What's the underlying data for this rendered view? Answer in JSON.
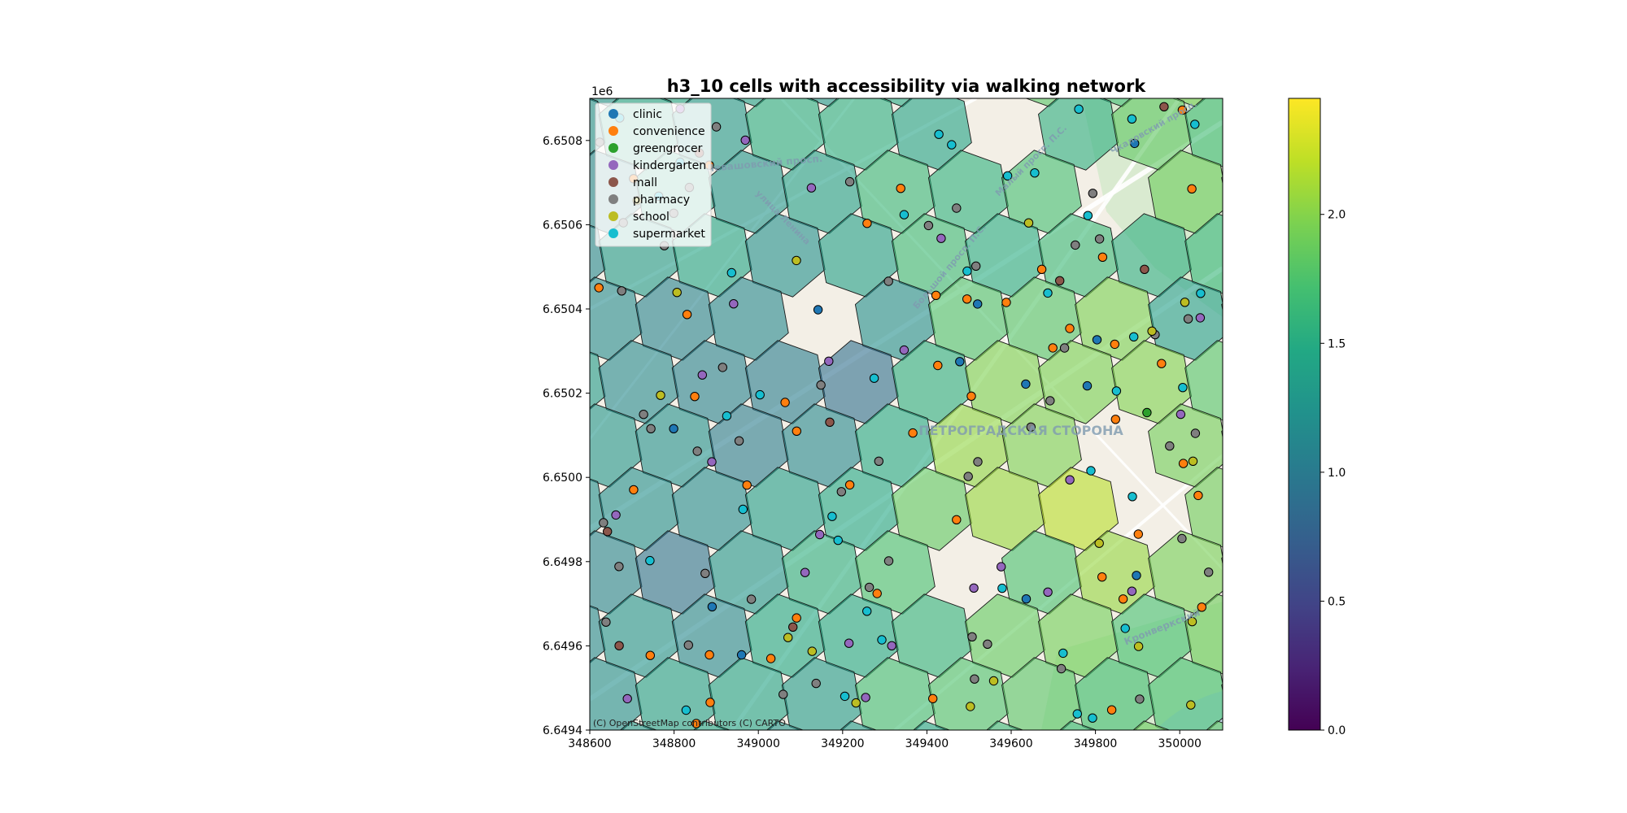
{
  "title": "h3_10 cells with accessibility via walking network",
  "axes": {
    "x_ticks": [
      "348600",
      "348800",
      "349000",
      "349200",
      "349400",
      "349600",
      "349800",
      "350000"
    ],
    "y_ticks": [
      "6.6494",
      "6.6496",
      "6.6498",
      "6.6500",
      "6.6502",
      "6.6504",
      "6.6506",
      "6.6508"
    ],
    "y_offset": "1e6"
  },
  "colorbar": {
    "ticks": [
      "0.0",
      "0.5",
      "1.0",
      "1.5",
      "2.0"
    ],
    "min": 0.0,
    "max": 2.45,
    "colormap": "viridis"
  },
  "legend": {
    "placement": "top-left",
    "items": [
      {
        "label": "clinic",
        "color": "#1f77b4"
      },
      {
        "label": "convenience",
        "color": "#ff7f0e"
      },
      {
        "label": "greengrocer",
        "color": "#2ca02c"
      },
      {
        "label": "kindergarten",
        "color": "#9467bd"
      },
      {
        "label": "mall",
        "color": "#8c564b"
      },
      {
        "label": "pharmacy",
        "color": "#7f7f7f"
      },
      {
        "label": "school",
        "color": "#bcbd22"
      },
      {
        "label": "supermarket",
        "color": "#17becf"
      }
    ]
  },
  "basemap": {
    "attribution": "(C) OpenStreetMap contributors (C) CARTO",
    "labels": [
      "Левашовский просп.",
      "ПЕТРОГРАДСКАЯ СТОРОНА",
      "Большой просп. П.С.",
      "Кронверкский",
      "улица Ленина",
      "Малый просп. П.С.",
      "Чкаловский просп."
    ]
  }
}
